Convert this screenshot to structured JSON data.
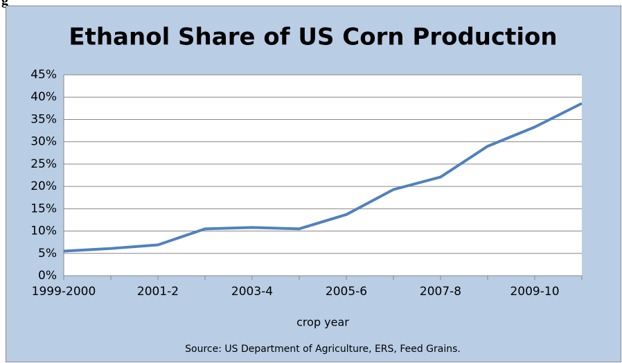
{
  "figure_label": "g",
  "chart_data": {
    "type": "line",
    "title": "Ethanol Share of US Corn Production",
    "x_label": "crop year",
    "source": "Source: US Department of Agriculture, ERS, Feed Grains.",
    "categories": [
      "1999-2000",
      null,
      "2001-2",
      null,
      "2003-4",
      null,
      "2005-6",
      null,
      "2007-8",
      null,
      "2009-10",
      null
    ],
    "series": [
      {
        "name": "Ethanol share",
        "color": "#4f81bd",
        "values": [
          5.5,
          6.1,
          6.9,
          10.5,
          10.8,
          10.5,
          13.7,
          19.3,
          22.1,
          29.0,
          33.3,
          38.6
        ]
      }
    ],
    "ylim": [
      0,
      45
    ],
    "yticks": [
      {
        "value": 0,
        "label": "0%"
      },
      {
        "value": 5,
        "label": "5%"
      },
      {
        "value": 10,
        "label": "10%"
      },
      {
        "value": 15,
        "label": "15%"
      },
      {
        "value": 20,
        "label": "20%"
      },
      {
        "value": 25,
        "label": "25%"
      },
      {
        "value": 30,
        "label": "30%"
      },
      {
        "value": 35,
        "label": "35%"
      },
      {
        "value": 40,
        "label": "40%"
      },
      {
        "value": 45,
        "label": "45%"
      }
    ],
    "grid": true
  }
}
